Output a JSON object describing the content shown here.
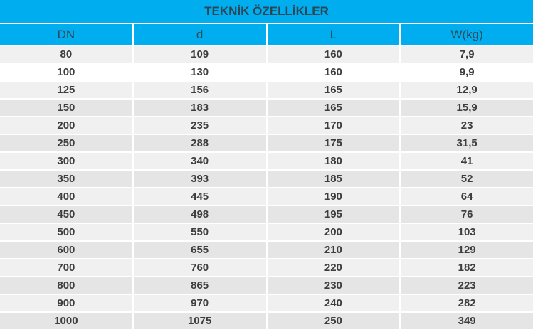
{
  "title": "TEKNİK ÖZELLİKLER",
  "columns": [
    "DN",
    "d",
    "L",
    "W(kg)"
  ],
  "rows": [
    [
      "80",
      "109",
      "160",
      "7,9"
    ],
    [
      "100",
      "130",
      "160",
      "9,9"
    ],
    [
      "125",
      "156",
      "165",
      "12,9"
    ],
    [
      "150",
      "183",
      "165",
      "15,9"
    ],
    [
      "200",
      "235",
      "170",
      "23"
    ],
    [
      "250",
      "288",
      "175",
      "31,5"
    ],
    [
      "300",
      "340",
      "180",
      "41"
    ],
    [
      "350",
      "393",
      "185",
      "52"
    ],
    [
      "400",
      "445",
      "190",
      "64"
    ],
    [
      "450",
      "498",
      "195",
      "76"
    ],
    [
      "500",
      "550",
      "200",
      "103"
    ],
    [
      "600",
      "655",
      "210",
      "129"
    ],
    [
      "700",
      "760",
      "220",
      "182"
    ],
    [
      "800",
      "865",
      "230",
      "223"
    ],
    [
      "900",
      "970",
      "240",
      "282"
    ],
    [
      "1000",
      "1075",
      "250",
      "349"
    ]
  ],
  "colors": {
    "header": "#00aeef",
    "row_light": "#f0f0f0",
    "row_dark": "#e5e5e5"
  }
}
